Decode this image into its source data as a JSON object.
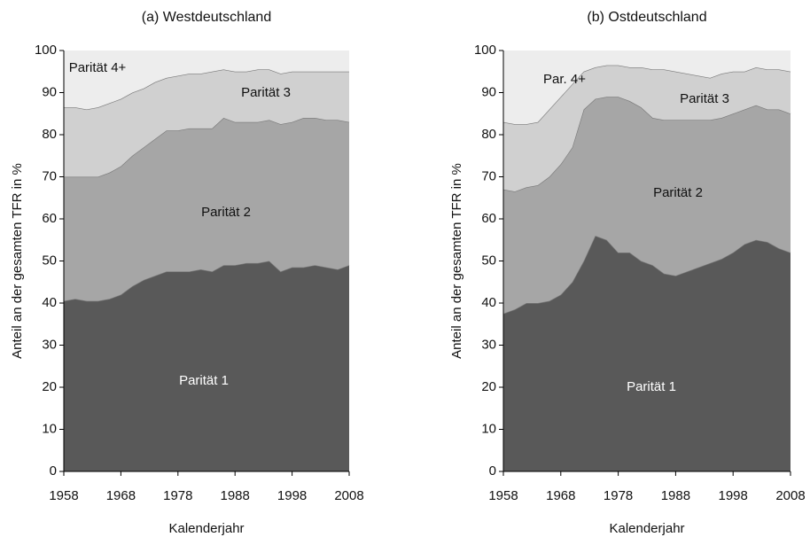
{
  "chart_data": [
    {
      "type": "stacked-area",
      "title": "(a) Westdeutschland",
      "x_label": "Kalenderjahr",
      "y_label": "Anteil an der gesamten TFR in %",
      "x": [
        1958,
        1960,
        1962,
        1964,
        1966,
        1968,
        1970,
        1972,
        1974,
        1976,
        1978,
        1980,
        1982,
        1984,
        1986,
        1988,
        1990,
        1992,
        1994,
        1996,
        1998,
        2000,
        2002,
        2004,
        2006,
        2008
      ],
      "series": [
        {
          "name": "Parität 1",
          "color": "#595959",
          "values": [
            40.5,
            41,
            40.5,
            40.5,
            41,
            42,
            44,
            45.5,
            46.5,
            47.5,
            47.5,
            47.5,
            48,
            47.5,
            49,
            49,
            49.5,
            49.5,
            50,
            47.5,
            48.5,
            48.5,
            49,
            48.5,
            48,
            49
          ]
        },
        {
          "name": "Parität 2",
          "color": "#a6a6a6",
          "values": [
            29.5,
            29,
            29.5,
            29.5,
            30,
            30.5,
            31,
            31.5,
            32.5,
            33.5,
            33.5,
            34,
            33.5,
            34,
            35,
            34,
            33.5,
            33.5,
            33.5,
            35,
            34.5,
            35.5,
            35,
            35,
            35.5,
            34
          ]
        },
        {
          "name": "Parität 3",
          "color": "#d0d0d0",
          "values": [
            16.5,
            16.5,
            16,
            16.5,
            16.5,
            16,
            15,
            14,
            13.5,
            12.5,
            13,
            13,
            13,
            13.5,
            11.5,
            12,
            12,
            12.5,
            12,
            12,
            12,
            11,
            11,
            11.5,
            11.5,
            12
          ]
        },
        {
          "name": "Parität 4+",
          "color": "#ededed",
          "values": [
            13.5,
            13.5,
            14,
            13.5,
            12.5,
            11.5,
            10,
            9,
            7.5,
            6.5,
            6,
            5.5,
            5.5,
            5,
            4.5,
            5,
            5,
            4.5,
            4.5,
            5.5,
            5,
            5,
            5,
            5,
            5,
            5
          ]
        }
      ],
      "xlim": [
        1958,
        2008
      ],
      "xticks": [
        1958,
        1968,
        1978,
        1988,
        1998,
        2008
      ],
      "ylim": [
        0,
        100
      ],
      "yticks": [
        0,
        10,
        20,
        30,
        40,
        50,
        60,
        70,
        80,
        90,
        100
      ]
    },
    {
      "type": "stacked-area",
      "title": "(b) Ostdeutschland",
      "x_label": "Kalenderjahr",
      "y_label": "Anteil an der gesamten TFR in %",
      "x": [
        1958,
        1960,
        1962,
        1964,
        1966,
        1968,
        1970,
        1972,
        1974,
        1976,
        1978,
        1980,
        1982,
        1984,
        1986,
        1988,
        1990,
        1992,
        1994,
        1996,
        1998,
        2000,
        2002,
        2004,
        2006,
        2008
      ],
      "series": [
        {
          "name": "Parität 1",
          "color": "#595959",
          "values": [
            37.5,
            38.5,
            40,
            40,
            40.5,
            42,
            45,
            50,
            56,
            55,
            52,
            52,
            50,
            49,
            47,
            46.5,
            47.5,
            48.5,
            49.5,
            50.5,
            52,
            54,
            55,
            54.5,
            53,
            52
          ]
        },
        {
          "name": "Parität 2",
          "color": "#a6a6a6",
          "values": [
            29.5,
            28,
            27.5,
            28,
            29.5,
            31,
            32,
            36,
            32.5,
            34,
            37,
            36,
            36.5,
            35,
            36.5,
            37,
            36,
            35,
            34,
            33.5,
            33,
            32,
            32,
            31.5,
            33,
            33
          ]
        },
        {
          "name": "Parität 3",
          "color": "#d0d0d0",
          "values": [
            16,
            16,
            15,
            15,
            16,
            16,
            15,
            9,
            7.5,
            7.5,
            7.5,
            8,
            9.5,
            11.5,
            12,
            11.5,
            11,
            10.5,
            10,
            10.5,
            10,
            9,
            9,
            9.5,
            9.5,
            10
          ]
        },
        {
          "name": "Par. 4+",
          "color": "#ededed",
          "values": [
            17,
            17.5,
            17.5,
            17,
            14,
            11,
            8,
            5,
            4,
            3.5,
            3.5,
            4,
            4,
            4.5,
            4.5,
            5,
            5.5,
            6,
            6.5,
            5.5,
            5,
            5,
            4,
            4.5,
            4.5,
            5
          ]
        }
      ],
      "xlim": [
        1958,
        2008
      ],
      "xticks": [
        1958,
        1968,
        1978,
        1988,
        1998,
        2008
      ],
      "ylim": [
        0,
        100
      ],
      "yticks": [
        0,
        10,
        20,
        30,
        40,
        50,
        60,
        70,
        80,
        90,
        100
      ]
    }
  ]
}
